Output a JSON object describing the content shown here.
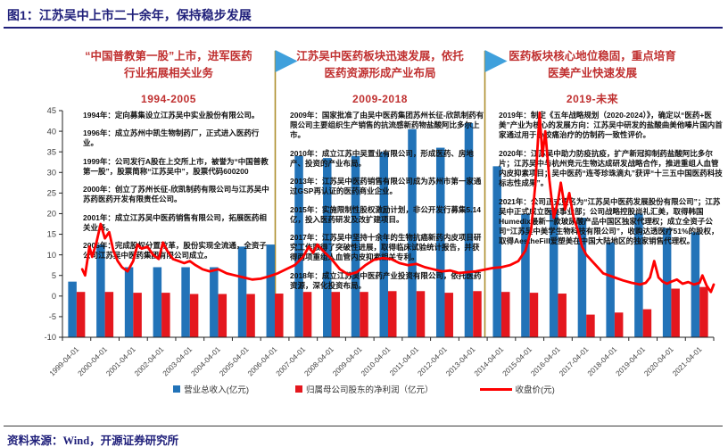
{
  "title": "图1：江苏吴中上市二十余年，保持稳步发展",
  "source": "资料来源：Wind，开源证券研究所",
  "colors": {
    "navy": "#1F1F7A",
    "header_red": "#C03030",
    "bar_blue": "#2273B8",
    "bar_red": "#E4171E",
    "line_red": "#FE0000",
    "flag_blue": "#3FA0DC",
    "pole_gold": "#AD8E2D",
    "axis_text": "#404040"
  },
  "eras": [
    {
      "headline": "“中国普教第一股”上市，进军医药行业拓展相关业务",
      "period": "1994-2005",
      "events": [
        {
          "year": "1994年",
          "text": "定向募集设立江苏吴中实业股份有限公司。"
        },
        {
          "year": "1996年",
          "text": "成立苏州中凯生物制药厂，正式进入医药行业。"
        },
        {
          "year": "1999年",
          "text": "公司发行A股在上交所上市，被誉为“中国普教第一股”，股票简称“江苏吴中”，股票代码600200"
        },
        {
          "year": "2000年",
          "text": "创立了苏州长征-欣凯制药有限公司与江苏吴中苏药医药开发有限责任公司。"
        },
        {
          "year": "2001年",
          "text": "成立江苏吴中医药销售有限公司，拓展医药相关业务。"
        },
        {
          "year": "2005年",
          "text": "完成股权分置改革，股份实现全流通，全资子公司江苏吴中医药集团有限公司成立。"
        }
      ]
    },
    {
      "headline": "江苏吴中医药板块迅速发展，依托医药资源形成产业布局",
      "period": "2009-2018",
      "events": [
        {
          "year": "2009年",
          "text": "国家批准了由吴中医药集团苏州长征-欣凯制药有限公司主要组织生产销售的抗流感新药物盐酸阿比多尔上市。"
        },
        {
          "year": "2010年",
          "text": "成立江苏中吴置业有限公司，形成医药、房地产、投资的产业布局。"
        },
        {
          "year": "2013年",
          "text": "江苏吴中医药销售有限公司成为苏州市第一家通过GSP再认证的医药商业企业。"
        },
        {
          "year": "2015年",
          "text": "实施限制性股权激励计划，非公开发行募集5.14亿，投入医药研发及改扩建项目。"
        },
        {
          "year": "2017年",
          "text": "江苏吴中坚持十余年的生物抗癌新药内皮项目研究工作取得了突破性进展，取得临床试验统计报告，并获得两项重组人血管内皮抑素相关专利。"
        },
        {
          "year": "2018年",
          "text": "成立江苏吴中医药产业投资有限公司，依托医药资源，深化投资布局。"
        }
      ]
    },
    {
      "headline": "医药板块核心地位稳固，重点培育医美产业快速发展",
      "period": "2019-未来",
      "events": [
        {
          "year": "2019年",
          "text": "制定《五年战略规划（2020-2024）》，确定以“医药+医美”产业为核心的发展方向：江苏吴中研发的盐酸曲美他嗪片国内首家通过用于心绞痛治疗的仿制药一致性评价。"
        },
        {
          "year": "2020年",
          "text": "江苏吴中助力防疫抗疫，扩产新冠抑制药盐酸阿比多尔片；江苏吴中与杭州竞元生物达成研发战略合作，推进重组人血管内皮抑素项目；吴中医药“连苓珍珠滴丸”获评“十三五中国医药科技标志性成果”。"
        },
        {
          "year": "2021年",
          "text": "公司正式更名为“江苏吴中医药发展股份有限公司”；江苏吴中正式成立医美事业部；公司战略控股尚礼汇美，取得韩国Humedix最新一款玻尿酸产品中国区独家代理权；成立全资子公司“江苏吴中美学生物科技有限公司”，收购达透医疗51%的股权，取得AestheFill爱塑美在中国大陆地区的独家销售代理权。"
        }
      ]
    }
  ],
  "legend": {
    "revenue": "营业总收入(亿元)",
    "profit": "归属母公司股东的净利润（亿元）",
    "price": "收盘价(元)"
  },
  "chart_data": {
    "type": "bar",
    "note": "combo bar+line; bars are drawn from the bottom of the plot area (axis min -10)",
    "categories": [
      "1999-04-01",
      "2000-04-01",
      "2001-04-01",
      "2002-04-01",
      "2003-04-01",
      "2004-04-01",
      "2005-04-01",
      "2006-04-01",
      "2007-04-01",
      "2008-04-01",
      "2009-04-01",
      "2010-04-01",
      "2011-04-01",
      "2012-04-01",
      "2013-04-01",
      "2014-04-01",
      "2015-04-01",
      "2016-04-01",
      "2017-04-01",
      "2018-04-01",
      "2019-04-01",
      "2020-04-01",
      "2021-04-01"
    ],
    "series": [
      {
        "name": "营业总收入(亿元)",
        "kind": "bar",
        "color_key": "bar_blue",
        "values": [
          3.5,
          12.5,
          7,
          7,
          7,
          7,
          12,
          12.5,
          34,
          33.5,
          34,
          35,
          40.5,
          36,
          42,
          31.5,
          20,
          21,
          19,
          13,
          20,
          16.5,
          15.5
        ]
      },
      {
        "name": "归属母公司股东的净利润（亿元）",
        "kind": "bar",
        "color_key": "bar_red",
        "values": [
          1,
          1,
          0.8,
          0.8,
          0.5,
          0.5,
          0.5,
          0.6,
          1,
          1,
          1,
          1.2,
          1.2,
          0.8,
          1.2,
          1,
          0.8,
          0.6,
          -4.5,
          -4,
          -3.2,
          1.8,
          2.2
        ]
      }
    ],
    "line_series": {
      "name": "收盘价(元)",
      "color_key": "line_red",
      "points": [
        [
          1999.2,
          6.5
        ],
        [
          1999.3,
          5
        ],
        [
          1999.45,
          12
        ],
        [
          1999.55,
          9.5
        ],
        [
          1999.7,
          13
        ],
        [
          1999.85,
          17.5
        ],
        [
          2000.0,
          14
        ],
        [
          2000.15,
          15.5
        ],
        [
          2000.3,
          11
        ],
        [
          2000.45,
          8.5
        ],
        [
          2000.6,
          7
        ],
        [
          2000.8,
          6
        ],
        [
          2001.0,
          8.5
        ],
        [
          2001.15,
          12.5
        ],
        [
          2001.3,
          11.5
        ],
        [
          2001.5,
          12
        ],
        [
          2001.7,
          10
        ],
        [
          2001.9,
          9
        ],
        [
          2002.05,
          13
        ],
        [
          2002.2,
          11
        ],
        [
          2002.4,
          9
        ],
        [
          2002.6,
          8.5
        ],
        [
          2002.8,
          8
        ],
        [
          2003.0,
          8.5
        ],
        [
          2003.2,
          7.5
        ],
        [
          2003.45,
          6.5
        ],
        [
          2003.7,
          6
        ],
        [
          2004.0,
          6.5
        ],
        [
          2004.3,
          5.5
        ],
        [
          2004.6,
          5
        ],
        [
          2004.9,
          4.5
        ],
        [
          2005.2,
          4
        ],
        [
          2005.5,
          4.2
        ],
        [
          2005.8,
          4.8
        ],
        [
          2006.1,
          5.5
        ],
        [
          2006.4,
          6.5
        ],
        [
          2006.7,
          7.5
        ],
        [
          2007.0,
          9.5
        ],
        [
          2007.2,
          12
        ],
        [
          2007.35,
          10.5
        ],
        [
          2007.5,
          12.5
        ],
        [
          2007.7,
          11
        ],
        [
          2008.0,
          9
        ],
        [
          2008.3,
          6.5
        ],
        [
          2008.6,
          5.2
        ],
        [
          2008.9,
          5.8
        ],
        [
          2009.2,
          7.5
        ],
        [
          2009.5,
          8.8
        ],
        [
          2009.8,
          9.2
        ],
        [
          2010.1,
          9
        ],
        [
          2010.4,
          8
        ],
        [
          2010.7,
          7.5
        ],
        [
          2011.0,
          7.8
        ],
        [
          2011.3,
          7
        ],
        [
          2011.6,
          6.5
        ],
        [
          2011.9,
          6
        ],
        [
          2012.2,
          6.2
        ],
        [
          2012.5,
          5.6
        ],
        [
          2012.8,
          5.8
        ],
        [
          2013.1,
          6
        ],
        [
          2013.4,
          6.4
        ],
        [
          2013.7,
          6.8
        ],
        [
          2014.0,
          7
        ],
        [
          2014.3,
          7.5
        ],
        [
          2014.6,
          8.5
        ],
        [
          2014.85,
          11
        ],
        [
          2015.05,
          16
        ],
        [
          2015.2,
          27
        ],
        [
          2015.35,
          44.5
        ],
        [
          2015.45,
          34
        ],
        [
          2015.55,
          40
        ],
        [
          2015.7,
          28
        ],
        [
          2015.85,
          19
        ],
        [
          2016.0,
          23
        ],
        [
          2016.1,
          27.5
        ],
        [
          2016.25,
          21
        ],
        [
          2016.4,
          25
        ],
        [
          2016.55,
          19
        ],
        [
          2016.7,
          16
        ],
        [
          2016.85,
          12
        ],
        [
          2017.0,
          10
        ],
        [
          2017.2,
          8.5
        ],
        [
          2017.4,
          7
        ],
        [
          2017.6,
          5.5
        ],
        [
          2017.8,
          5
        ],
        [
          2018.0,
          4.5
        ],
        [
          2018.3,
          3.8
        ],
        [
          2018.6,
          3.2
        ],
        [
          2018.9,
          2.8
        ],
        [
          2019.1,
          3.2
        ],
        [
          2019.25,
          4.5
        ],
        [
          2019.4,
          8.5
        ],
        [
          2019.55,
          4.5
        ],
        [
          2019.7,
          3.5
        ],
        [
          2019.85,
          3
        ],
        [
          2020.0,
          3.5
        ],
        [
          2020.2,
          4
        ],
        [
          2020.4,
          3
        ],
        [
          2020.6,
          3.4
        ],
        [
          2020.8,
          2.8
        ],
        [
          2021.0,
          3.2
        ],
        [
          2021.1,
          5
        ],
        [
          2021.25,
          2.5
        ],
        [
          2021.4,
          1
        ],
        [
          2021.5,
          2.8
        ]
      ]
    },
    "ylim": [
      -10,
      45
    ],
    "y_ticks": [
      45,
      40,
      35,
      30,
      25,
      20,
      15,
      10,
      5,
      0,
      -5,
      -10
    ],
    "grid": false,
    "legend_position": "bottom"
  }
}
